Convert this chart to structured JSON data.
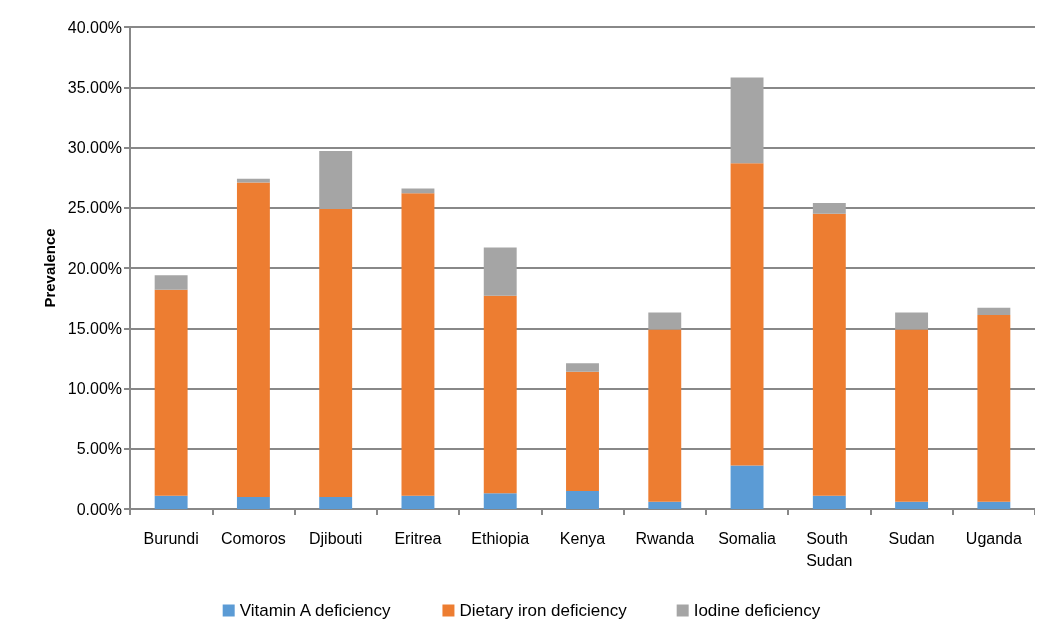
{
  "chart_data": {
    "type": "bar",
    "stacked": true,
    "ylabel": "Prevalence",
    "categories": [
      "Burundi",
      "Comoros",
      "Djibouti",
      "Eritrea",
      "Ethiopia",
      "Kenya",
      "Rwanda",
      "Somalia",
      "South Sudan",
      "Sudan",
      "Uganda"
    ],
    "series": [
      {
        "name": "Vitamin A deficiency",
        "color": "#5b9bd5",
        "values": [
          1.1,
          1.0,
          1.0,
          1.1,
          1.3,
          1.5,
          0.6,
          3.6,
          1.1,
          0.6,
          0.6
        ]
      },
      {
        "name": "Dietary iron deficiency",
        "color": "#ed7d31",
        "values": [
          17.1,
          26.1,
          23.9,
          25.1,
          16.4,
          9.9,
          14.3,
          25.1,
          23.4,
          14.3,
          15.5
        ]
      },
      {
        "name": "Iodine deficiency",
        "color": "#a5a5a5",
        "values": [
          1.2,
          0.3,
          4.8,
          0.4,
          4.0,
          0.7,
          1.4,
          7.1,
          0.9,
          1.4,
          0.6
        ]
      }
    ],
    "ylim": [
      0,
      40
    ],
    "yticks": [
      {
        "value": 0,
        "label": "0.00%"
      },
      {
        "value": 5,
        "label": "5.00%"
      },
      {
        "value": 10,
        "label": "10.00%"
      },
      {
        "value": 15,
        "label": "15.00%"
      },
      {
        "value": 20,
        "label": "20.00%"
      },
      {
        "value": 25,
        "label": "25.00%"
      },
      {
        "value": 30,
        "label": "30.00%"
      },
      {
        "value": 35,
        "label": "35.00%"
      },
      {
        "value": 40,
        "label": "40.00%"
      }
    ],
    "grid": true,
    "legend": "bottom"
  }
}
